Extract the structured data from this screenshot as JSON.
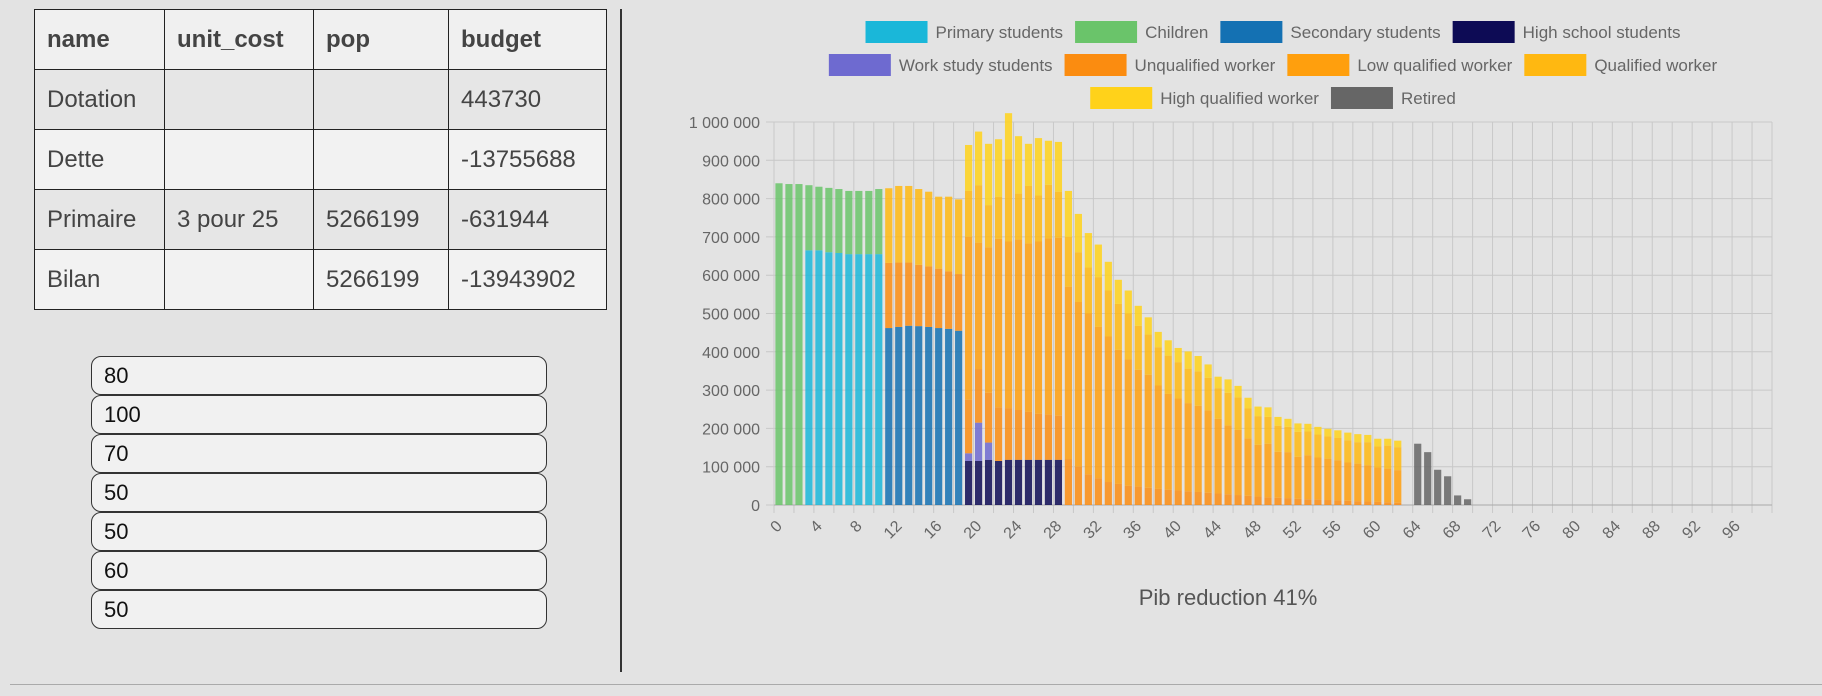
{
  "table": {
    "headers": [
      "name",
      "unit_cost",
      "pop",
      "budget"
    ],
    "rows": [
      [
        "Dotation",
        "",
        "",
        "443730"
      ],
      [
        "Dette",
        "",
        "",
        "-13755688"
      ],
      [
        "Primaire",
        "3 pour 25",
        "5266199",
        "-631944"
      ],
      [
        "Bilan",
        "",
        "5266199",
        "-13943902"
      ]
    ]
  },
  "inputs": [
    "80",
    "100",
    "70",
    "50",
    "50",
    "60",
    "50"
  ],
  "chart_data": {
    "type": "bar",
    "stacked": true,
    "title": "Pib reduction 41%",
    "xlabel": "",
    "ylabel": "",
    "ylim": [
      0,
      1000000
    ],
    "y_ticks": [
      0,
      100000,
      200000,
      300000,
      400000,
      500000,
      600000,
      700000,
      800000,
      900000,
      1000000
    ],
    "y_tick_labels": [
      "0",
      "100 000",
      "200 000",
      "300 000",
      "400 000",
      "500 000",
      "600 000",
      "700 000",
      "800 000",
      "900 000",
      "1 000 000"
    ],
    "x_tick_labels": [
      "0",
      "4",
      "8",
      "12",
      "16",
      "20",
      "24",
      "28",
      "32",
      "36",
      "40",
      "44",
      "48",
      "52",
      "56",
      "60",
      "64",
      "68",
      "72",
      "76",
      "80",
      "84",
      "88",
      "92",
      "96"
    ],
    "categories": [
      0,
      1,
      2,
      3,
      4,
      5,
      6,
      7,
      8,
      9,
      10,
      11,
      12,
      13,
      14,
      15,
      16,
      17,
      18,
      19,
      20,
      21,
      22,
      23,
      24,
      25,
      26,
      27,
      28,
      29,
      30,
      31,
      32,
      33,
      34,
      35,
      36,
      37,
      38,
      39,
      40,
      41,
      42,
      43,
      44,
      45,
      46,
      47,
      48,
      49,
      50,
      51,
      52,
      53,
      54,
      55,
      56,
      57,
      58,
      59,
      60,
      61,
      62,
      63,
      64,
      65,
      66,
      67,
      68,
      69,
      70,
      71,
      72,
      73,
      74,
      75,
      76,
      77,
      78,
      79,
      80,
      81,
      82,
      83,
      84,
      85,
      86,
      87,
      88,
      89,
      90,
      91,
      92,
      93,
      94,
      95,
      96,
      97,
      98,
      99
    ],
    "grid": true,
    "legend_position": "top",
    "series": [
      {
        "name": "Primary students",
        "color": "#1ab7d9",
        "values": [
          0,
          0,
          0,
          665000,
          665000,
          660000,
          658000,
          655000,
          655000,
          655000,
          655000,
          0,
          0,
          0,
          0,
          0,
          0,
          0,
          0,
          0,
          0,
          0,
          0,
          0,
          0,
          0,
          0,
          0,
          0,
          0,
          0,
          0,
          0,
          0,
          0,
          0,
          0,
          0,
          0,
          0,
          0,
          0,
          0,
          0,
          0,
          0,
          0,
          0,
          0,
          0,
          0,
          0,
          0,
          0,
          0,
          0,
          0,
          0,
          0,
          0,
          0,
          0,
          0,
          0,
          0,
          0,
          0,
          0,
          0,
          0,
          0,
          0,
          0,
          0,
          0,
          0,
          0,
          0,
          0,
          0,
          0,
          0,
          0,
          0,
          0,
          0,
          0,
          0,
          0,
          0,
          0,
          0,
          0,
          0,
          0,
          0,
          0,
          0,
          0,
          0
        ]
      },
      {
        "name": "Children",
        "color": "#6ac46a",
        "values": [
          840000,
          838000,
          838000,
          170000,
          166000,
          168000,
          167000,
          165000,
          165000,
          165000,
          170000,
          0,
          0,
          0,
          0,
          0,
          0,
          0,
          0,
          0,
          0,
          0,
          0,
          0,
          0,
          0,
          0,
          0,
          0,
          0,
          0,
          0,
          0,
          0,
          0,
          0,
          0,
          0,
          0,
          0,
          0,
          0,
          0,
          0,
          0,
          0,
          0,
          0,
          0,
          0,
          0,
          0,
          0,
          0,
          0,
          0,
          0,
          0,
          0,
          0,
          0,
          0,
          0,
          0,
          0,
          0,
          0,
          0,
          0,
          0,
          0,
          0,
          0,
          0,
          0,
          0,
          0,
          0,
          0,
          0,
          0,
          0,
          0,
          0,
          0,
          0,
          0,
          0,
          0,
          0,
          0,
          0,
          0,
          0,
          0,
          0,
          0,
          0,
          0,
          0
        ]
      },
      {
        "name": "Secondary students",
        "color": "#1471b3",
        "values": [
          0,
          0,
          0,
          0,
          0,
          0,
          0,
          0,
          0,
          0,
          0,
          462000,
          465000,
          468000,
          467000,
          465000,
          462000,
          460000,
          455000,
          0,
          0,
          0,
          0,
          0,
          0,
          0,
          0,
          0,
          0,
          0,
          0,
          0,
          0,
          0,
          0,
          0,
          0,
          0,
          0,
          0,
          0,
          0,
          0,
          0,
          0,
          0,
          0,
          0,
          0,
          0,
          0,
          0,
          0,
          0,
          0,
          0,
          0,
          0,
          0,
          0,
          0,
          0,
          0,
          0,
          0,
          0,
          0,
          0,
          0,
          0,
          0,
          0,
          0,
          0,
          0,
          0,
          0,
          0,
          0,
          0,
          0,
          0,
          0,
          0,
          0,
          0,
          0,
          0,
          0,
          0,
          0,
          0,
          0,
          0,
          0,
          0,
          0,
          0,
          0,
          0
        ]
      },
      {
        "name": "High school students",
        "color": "#0d0b55",
        "values": [
          0,
          0,
          0,
          0,
          0,
          0,
          0,
          0,
          0,
          0,
          0,
          0,
          0,
          0,
          0,
          0,
          0,
          0,
          0,
          115000,
          115000,
          118000,
          115000,
          118000,
          118000,
          118000,
          118000,
          118000,
          118000,
          0,
          0,
          0,
          0,
          0,
          0,
          0,
          0,
          0,
          0,
          0,
          0,
          0,
          0,
          0,
          0,
          0,
          0,
          0,
          0,
          0,
          0,
          0,
          0,
          0,
          0,
          0,
          0,
          0,
          0,
          0,
          0,
          0,
          0,
          0,
          0,
          0,
          0,
          0,
          0,
          0,
          0,
          0,
          0,
          0,
          0,
          0,
          0,
          0,
          0,
          0,
          0,
          0,
          0,
          0,
          0,
          0,
          0,
          0,
          0,
          0,
          0,
          0,
          0,
          0,
          0,
          0,
          0,
          0,
          0,
          0
        ]
      },
      {
        "name": "Work study students",
        "color": "#6e6ad0",
        "values": [
          0,
          0,
          0,
          0,
          0,
          0,
          0,
          0,
          0,
          0,
          0,
          0,
          0,
          0,
          0,
          0,
          0,
          0,
          0,
          20000,
          100000,
          45000,
          0,
          0,
          0,
          0,
          0,
          0,
          0,
          0,
          0,
          0,
          0,
          0,
          0,
          0,
          0,
          0,
          0,
          0,
          0,
          0,
          0,
          0,
          0,
          0,
          0,
          0,
          0,
          0,
          0,
          0,
          0,
          0,
          0,
          0,
          0,
          0,
          0,
          0,
          0,
          0,
          0,
          0,
          0,
          0,
          0,
          0,
          0,
          0,
          0,
          0,
          0,
          0,
          0,
          0,
          0,
          0,
          0,
          0,
          0,
          0,
          0,
          0,
          0,
          0,
          0,
          0,
          0,
          0,
          0,
          0,
          0,
          0,
          0,
          0,
          0,
          0,
          0,
          0
        ]
      },
      {
        "name": "Unqualified worker",
        "color": "#fb8c10",
        "values": [
          0,
          0,
          0,
          0,
          0,
          0,
          0,
          0,
          0,
          0,
          0,
          170000,
          168000,
          165000,
          160000,
          158000,
          155000,
          150000,
          148000,
          140000,
          140000,
          130000,
          140000,
          135000,
          130000,
          125000,
          120000,
          118000,
          115000,
          120000,
          100000,
          80000,
          70000,
          60000,
          55000,
          50000,
          48000,
          45000,
          42000,
          40000,
          38000,
          36000,
          34000,
          32000,
          30000,
          28000,
          26000,
          24000,
          22000,
          20000,
          19000,
          18000,
          16000,
          15000,
          14000,
          13000,
          12000,
          11000,
          10000,
          9000,
          8000,
          7000,
          6000,
          0,
          0,
          0,
          0,
          0,
          0,
          0,
          0,
          0,
          0,
          0,
          0,
          0,
          0,
          0,
          0,
          0,
          0,
          0,
          0,
          0,
          0,
          0,
          0,
          0,
          0,
          0,
          0,
          0,
          0,
          0,
          0,
          0,
          0,
          0,
          0,
          0
        ]
      },
      {
        "name": "Low qualified worker",
        "color": "#ff9f0d",
        "values": [
          0,
          0,
          0,
          0,
          0,
          0,
          0,
          0,
          0,
          0,
          0,
          0,
          0,
          0,
          0,
          0,
          0,
          0,
          0,
          425000,
          330000,
          380000,
          440000,
          435000,
          445000,
          440000,
          450000,
          460000,
          465000,
          450000,
          430000,
          420000,
          395000,
          380000,
          350000,
          330000,
          305000,
          295000,
          270000,
          250000,
          240000,
          230000,
          225000,
          215000,
          195000,
          180000,
          170000,
          150000,
          135000,
          140000,
          120000,
          120000,
          110000,
          115000,
          110000,
          108000,
          105000,
          100000,
          98000,
          95000,
          90000,
          88000,
          85000,
          0,
          0,
          0,
          0,
          0,
          0,
          0,
          0,
          0,
          0,
          0,
          0,
          0,
          0,
          0,
          0,
          0,
          0,
          0,
          0,
          0,
          0,
          0,
          0,
          0,
          0,
          0,
          0,
          0,
          0,
          0,
          0,
          0,
          0,
          0,
          0,
          0
        ]
      },
      {
        "name": "Qualified worker",
        "color": "#ffb811",
        "values": [
          0,
          0,
          0,
          0,
          0,
          0,
          0,
          0,
          0,
          0,
          0,
          195000,
          200000,
          200000,
          198000,
          195000,
          188000,
          195000,
          195000,
          120000,
          150000,
          110000,
          110000,
          215000,
          120000,
          150000,
          120000,
          140000,
          120000,
          130000,
          130000,
          120000,
          130000,
          120000,
          120000,
          120000,
          115000,
          105000,
          100000,
          100000,
          95000,
          90000,
          90000,
          85000,
          80000,
          85000,
          85000,
          78000,
          75000,
          70000,
          68000,
          66000,
          65000,
          62000,
          60000,
          58000,
          58000,
          58000,
          56000,
          60000,
          55000,
          60000,
          60000,
          0,
          0,
          0,
          0,
          0,
          0,
          0,
          0,
          0,
          0,
          0,
          0,
          0,
          0,
          0,
          0,
          0,
          0,
          0,
          0,
          0,
          0,
          0,
          0,
          0,
          0,
          0,
          0,
          0,
          0,
          0,
          0,
          0,
          0,
          0,
          0,
          0
        ]
      },
      {
        "name": "High qualified worker",
        "color": "#ffd21a",
        "values": [
          0,
          0,
          0,
          0,
          0,
          0,
          0,
          0,
          0,
          0,
          0,
          0,
          0,
          0,
          0,
          0,
          0,
          0,
          0,
          120000,
          140000,
          160000,
          150000,
          120000,
          150000,
          110000,
          150000,
          115000,
          130000,
          120000,
          100000,
          90000,
          85000,
          75000,
          63000,
          60000,
          52000,
          45000,
          40000,
          40000,
          37000,
          45000,
          40000,
          35000,
          30000,
          35000,
          30000,
          28000,
          25000,
          25000,
          23000,
          21000,
          22000,
          20000,
          20000,
          20000,
          20000,
          20000,
          21000,
          19000,
          20000,
          18000,
          17000,
          0,
          0,
          0,
          0,
          0,
          0,
          0,
          0,
          0,
          0,
          0,
          0,
          0,
          0,
          0,
          0,
          0,
          0,
          0,
          0,
          0,
          0,
          0,
          0,
          0,
          0,
          0,
          0,
          0,
          0,
          0,
          0,
          0,
          0,
          0,
          0,
          0
        ]
      },
      {
        "name": "Retired",
        "color": "#666666",
        "values": [
          0,
          0,
          0,
          0,
          0,
          0,
          0,
          0,
          0,
          0,
          0,
          0,
          0,
          0,
          0,
          0,
          0,
          0,
          0,
          0,
          0,
          0,
          0,
          0,
          0,
          0,
          0,
          0,
          0,
          0,
          0,
          0,
          0,
          0,
          0,
          0,
          0,
          0,
          0,
          0,
          0,
          0,
          0,
          0,
          0,
          0,
          0,
          0,
          0,
          0,
          0,
          0,
          0,
          0,
          0,
          0,
          0,
          0,
          0,
          0,
          0,
          0,
          0,
          0,
          160000,
          138000,
          92000,
          75000,
          25000,
          15000,
          0,
          0,
          0,
          0,
          0,
          0,
          0,
          0,
          0,
          0,
          0,
          0,
          0,
          0,
          0,
          0,
          0,
          0,
          0,
          0,
          0,
          0,
          0,
          0,
          0,
          0,
          0,
          0,
          0,
          0
        ]
      }
    ]
  }
}
